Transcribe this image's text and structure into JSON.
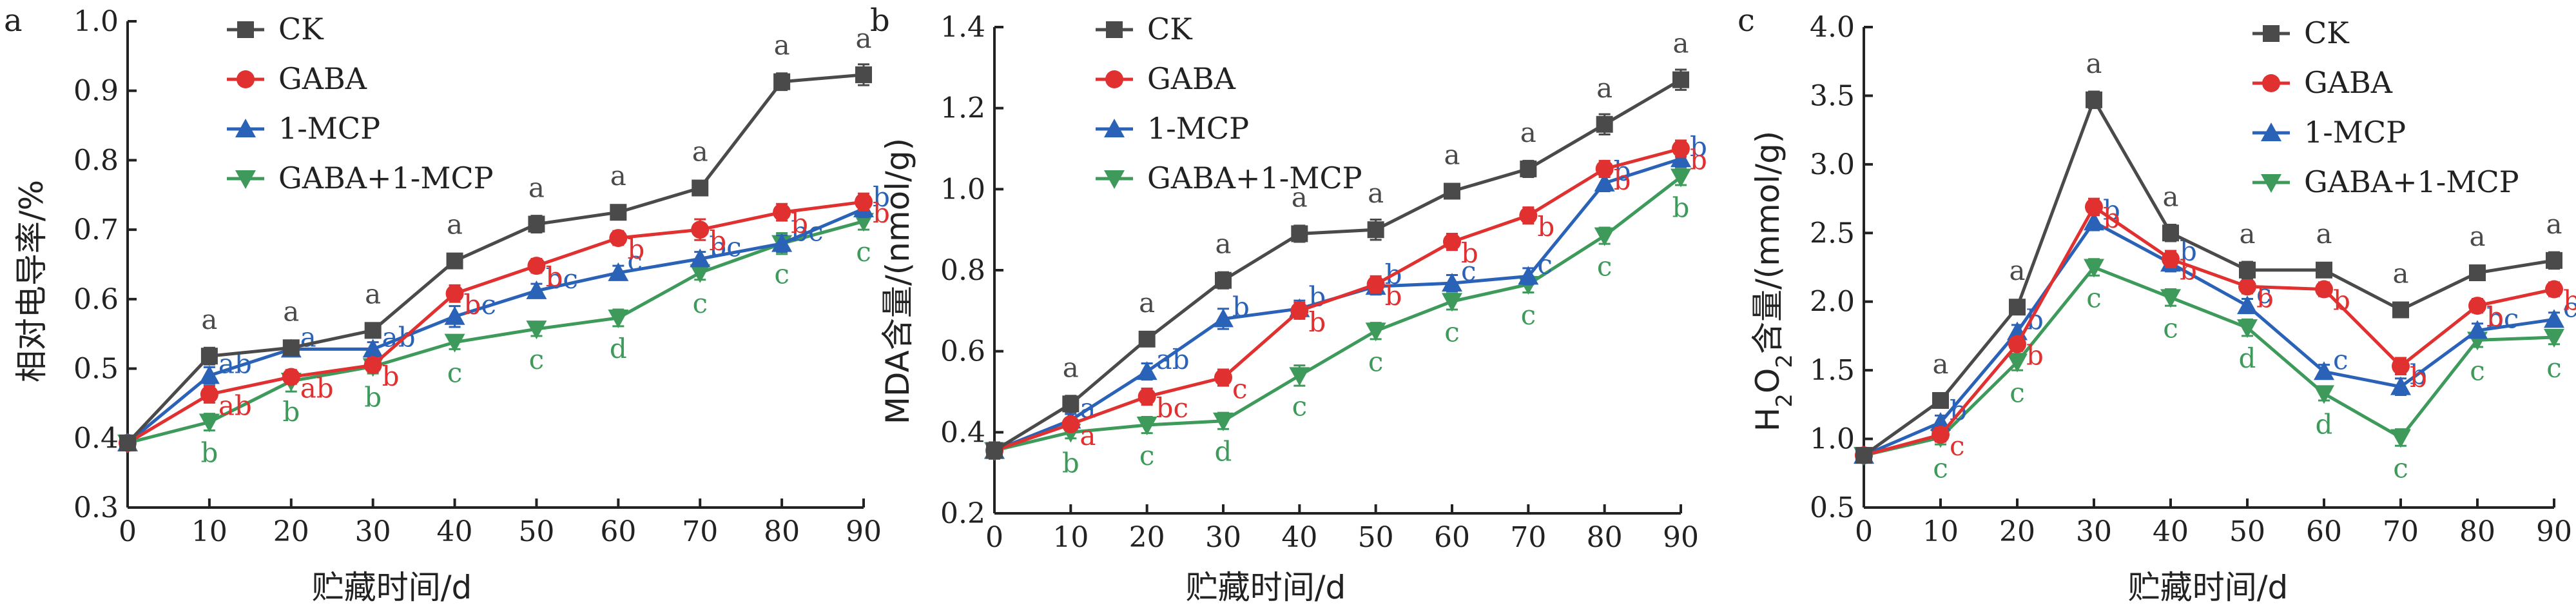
{
  "colors": {
    "CK": "#4a4a4a",
    "GABA": "#e03030",
    "1-MCP": "#2a62b8",
    "GABA+1-MCP": "#3d9a5a"
  },
  "chart_data": [
    {
      "panel": "a",
      "type": "line",
      "ylabel": "相对电导率/%",
      "xlabel": "贮藏时间/d",
      "x": [
        0,
        10,
        20,
        30,
        40,
        50,
        60,
        70,
        80,
        90
      ],
      "xlim": [
        0,
        90
      ],
      "ylim": [
        0.3,
        1.0
      ],
      "yticks": [
        "0.3",
        "0.4",
        "0.5",
        "0.6",
        "0.7",
        "0.8",
        "0.9",
        "1.0"
      ],
      "xticks": [
        "0",
        "10",
        "20",
        "30",
        "40",
        "50",
        "60",
        "70",
        "80",
        "90"
      ],
      "legend_position": "top-left",
      "series": [
        {
          "name": "CK",
          "marker": "square",
          "values": [
            0.393,
            0.518,
            0.53,
            0.555,
            0.655,
            0.708,
            0.725,
            0.76,
            0.913,
            0.923
          ],
          "errors": [
            0.01,
            0.012,
            0.01,
            0.01,
            0.01,
            0.012,
            0.01,
            0.01,
            0.012,
            0.015
          ],
          "labels": [
            "",
            "a",
            "a",
            "a",
            "a",
            "a",
            "a",
            "a",
            "a",
            "a"
          ]
        },
        {
          "name": "GABA",
          "marker": "circle",
          "values": [
            0.393,
            0.463,
            0.488,
            0.505,
            0.608,
            0.648,
            0.688,
            0.7,
            0.725,
            0.74
          ],
          "errors": [
            0.01,
            0.012,
            0.01,
            0.01,
            0.012,
            0.01,
            0.01,
            0.015,
            0.012,
            0.012
          ],
          "labels": [
            "",
            "ab",
            "ab",
            "b",
            "b",
            "b",
            "b",
            "b",
            "b",
            "b"
          ]
        },
        {
          "name": "1-MCP",
          "marker": "triangle-up",
          "values": [
            0.393,
            0.49,
            0.528,
            0.528,
            0.575,
            0.612,
            0.638,
            0.658,
            0.68,
            0.73
          ],
          "errors": [
            0.01,
            0.012,
            0.01,
            0.01,
            0.015,
            0.01,
            0.01,
            0.01,
            0.012,
            0.012
          ],
          "labels": [
            "",
            "ab",
            "a",
            "ab",
            "bc",
            "bc",
            "c",
            "bc",
            "bc",
            "b"
          ]
        },
        {
          "name": "GABA+1-MCP",
          "marker": "triangle-down",
          "values": [
            0.393,
            0.423,
            0.482,
            0.503,
            0.538,
            0.557,
            0.573,
            0.638,
            0.68,
            0.712
          ],
          "errors": [
            0.01,
            0.012,
            0.015,
            0.01,
            0.01,
            0.01,
            0.012,
            0.01,
            0.015,
            0.012
          ],
          "labels": [
            "",
            "b",
            "b",
            "b",
            "c",
            "c",
            "d",
            "c",
            "c",
            "c"
          ]
        }
      ]
    },
    {
      "panel": "b",
      "type": "line",
      "ylabel": "MDA含量/(nmol/g)",
      "xlabel": "贮藏时间/d",
      "x": [
        0,
        10,
        20,
        30,
        40,
        50,
        60,
        70,
        80,
        90
      ],
      "xlim": [
        0,
        90
      ],
      "ylim": [
        0.2,
        1.4
      ],
      "yticks": [
        "0.2",
        "0.4",
        "0.6",
        "0.8",
        "1.0",
        "1.2",
        "1.4"
      ],
      "xticks": [
        "0",
        "10",
        "20",
        "30",
        "40",
        "50",
        "60",
        "70",
        "80",
        "90"
      ],
      "legend_position": "top-left",
      "series": [
        {
          "name": "CK",
          "marker": "square",
          "values": [
            0.355,
            0.47,
            0.63,
            0.775,
            0.89,
            0.9,
            0.995,
            1.05,
            1.16,
            1.27
          ],
          "errors": [
            0.02,
            0.02,
            0.015,
            0.02,
            0.02,
            0.025,
            0.015,
            0.02,
            0.025,
            0.025
          ],
          "labels": [
            "",
            "a",
            "a",
            "a",
            "a",
            "a",
            "a",
            "a",
            "a",
            "a"
          ]
        },
        {
          "name": "GABA",
          "marker": "circle",
          "values": [
            0.355,
            0.42,
            0.488,
            0.535,
            0.7,
            0.765,
            0.87,
            0.935,
            1.05,
            1.1
          ],
          "errors": [
            0.02,
            0.015,
            0.02,
            0.02,
            0.02,
            0.02,
            0.02,
            0.02,
            0.02,
            0.02
          ],
          "labels": [
            "",
            "a",
            "bc",
            "c",
            "b",
            "b",
            "b",
            "b",
            "b",
            "b"
          ]
        },
        {
          "name": "1-MCP",
          "marker": "triangle-up",
          "values": [
            0.355,
            0.43,
            0.55,
            0.68,
            0.705,
            0.76,
            0.768,
            0.785,
            1.015,
            1.075
          ],
          "errors": [
            0.02,
            0.015,
            0.02,
            0.025,
            0.02,
            0.02,
            0.02,
            0.02,
            0.02,
            0.02
          ],
          "labels": [
            "",
            "a",
            "ab",
            "b",
            "b",
            "b",
            "c",
            "c",
            "b",
            "b"
          ]
        },
        {
          "name": "GABA+1-MCP",
          "marker": "triangle-down",
          "values": [
            0.355,
            0.4,
            0.418,
            0.428,
            0.54,
            0.65,
            0.723,
            0.765,
            0.885,
            1.03
          ],
          "errors": [
            0.02,
            0.015,
            0.02,
            0.02,
            0.025,
            0.02,
            0.02,
            0.02,
            0.02,
            0.02
          ],
          "labels": [
            "",
            "b",
            "c",
            "d",
            "c",
            "c",
            "c",
            "c",
            "c",
            "b"
          ]
        }
      ]
    },
    {
      "panel": "c",
      "type": "line",
      "ylabel": "H2O2含量/(mmol/g)",
      "ylabel_parts": {
        "h": "H",
        "s1": "2",
        "o": "O",
        "s2": "2",
        "rest": "含量/(mmol/g)"
      },
      "xlabel": "贮藏时间/d",
      "x": [
        0,
        10,
        20,
        30,
        40,
        50,
        60,
        70,
        80,
        90
      ],
      "xlim": [
        0,
        90
      ],
      "ylim": [
        0.5,
        4.0
      ],
      "yticks": [
        "0.5",
        "1.0",
        "1.5",
        "2.0",
        "2.5",
        "3.0",
        "3.5",
        "4.0"
      ],
      "xticks": [
        "0",
        "10",
        "20",
        "30",
        "40",
        "50",
        "60",
        "70",
        "80",
        "90"
      ],
      "legend_position": "top-right",
      "series": [
        {
          "name": "CK",
          "marker": "square",
          "values": [
            0.88,
            1.28,
            1.96,
            3.47,
            2.5,
            2.23,
            2.23,
            1.94,
            2.21,
            2.3
          ],
          "errors": [
            0.04,
            0.05,
            0.05,
            0.06,
            0.06,
            0.06,
            0.05,
            0.05,
            0.05,
            0.06
          ],
          "labels": [
            "",
            "a",
            "a",
            "a",
            "a",
            "a",
            "a",
            "a",
            "a",
            "a"
          ]
        },
        {
          "name": "GABA",
          "marker": "circle",
          "values": [
            0.88,
            1.03,
            1.69,
            2.69,
            2.31,
            2.11,
            2.09,
            1.53,
            1.97,
            2.09
          ],
          "errors": [
            0.04,
            0.05,
            0.05,
            0.06,
            0.06,
            0.05,
            0.05,
            0.06,
            0.05,
            0.05
          ],
          "labels": [
            "",
            "c",
            "b",
            "b",
            "b",
            "b",
            "b",
            "b",
            "b",
            "b"
          ]
        },
        {
          "name": "1-MCP",
          "marker": "triangle-up",
          "values": [
            0.88,
            1.12,
            1.78,
            2.58,
            2.28,
            1.97,
            1.49,
            1.38,
            1.79,
            1.87
          ],
          "errors": [
            0.04,
            0.05,
            0.05,
            0.06,
            0.06,
            0.05,
            0.05,
            0.06,
            0.05,
            0.05
          ],
          "labels": [
            "",
            "b",
            "b",
            "b",
            "b",
            "c",
            "c",
            "b",
            "bc",
            "c"
          ]
        },
        {
          "name": "GABA+1-MCP",
          "marker": "triangle-down",
          "values": [
            0.88,
            1.01,
            1.56,
            2.25,
            2.03,
            1.81,
            1.33,
            1.01,
            1.72,
            1.74
          ],
          "errors": [
            0.04,
            0.05,
            0.06,
            0.06,
            0.06,
            0.06,
            0.05,
            0.06,
            0.05,
            0.05
          ],
          "labels": [
            "",
            "c",
            "c",
            "c",
            "c",
            "d",
            "d",
            "c",
            "c",
            "c"
          ]
        }
      ]
    }
  ]
}
